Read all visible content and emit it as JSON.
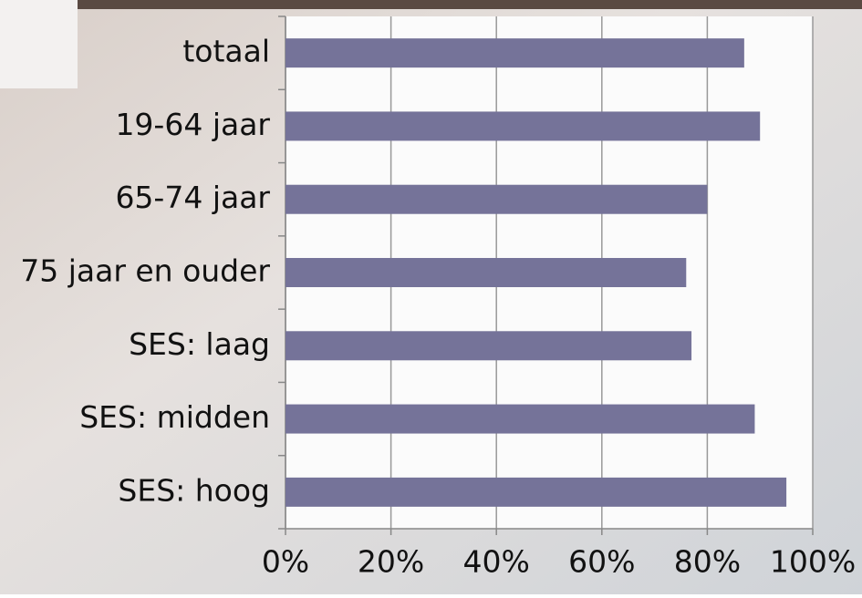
{
  "chart_data": {
    "type": "bar",
    "orientation": "horizontal",
    "categories": [
      "totaal",
      "19-64 jaar",
      "65-74 jaar",
      "75 jaar en ouder",
      "SES: laag",
      "SES: midden",
      "SES: hoog"
    ],
    "values": [
      87,
      90,
      80,
      76,
      77,
      89,
      95
    ],
    "color": "#757399",
    "xlim": [
      0,
      100
    ],
    "xticks": [
      {
        "value": 0,
        "label": "0%"
      },
      {
        "value": 20,
        "label": "20%"
      },
      {
        "value": 40,
        "label": "40%"
      },
      {
        "value": 60,
        "label": "60%"
      },
      {
        "value": 80,
        "label": "80%"
      },
      {
        "value": 100,
        "label": "100%"
      }
    ],
    "grid": true
  }
}
